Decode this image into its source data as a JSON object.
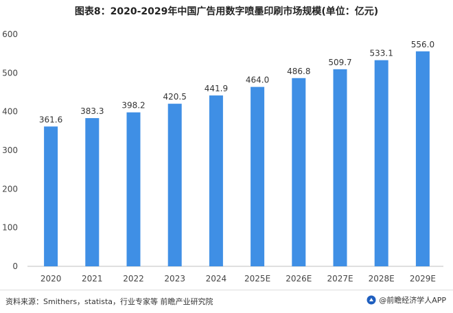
{
  "title": "图表8：2020-2029年中国广告用数字喷墨印刷市场规模(单位：亿元)",
  "chart_data": {
    "type": "bar",
    "title": "图表8：2020-2029年中国广告用数字喷墨印刷市场规模(单位：亿元)",
    "categories": [
      "2020",
      "2021",
      "2022",
      "2023",
      "2024",
      "2025E",
      "2026E",
      "2027E",
      "2028E",
      "2029E"
    ],
    "values": [
      361.6,
      383.3,
      398.2,
      420.5,
      441.9,
      464.0,
      486.8,
      509.7,
      533.1,
      556.0
    ],
    "value_labels": [
      "361.6",
      "383.3",
      "398.2",
      "420.5",
      "441.9",
      "464.0",
      "486.8",
      "509.7",
      "533.1",
      "556.0"
    ],
    "ylim": [
      0,
      600
    ],
    "yticks": [
      "0",
      "100",
      "200",
      "300",
      "400",
      "500",
      "600"
    ],
    "grid": false,
    "legend": "none",
    "bar_color": "#3f8fe5"
  },
  "footer": {
    "source": "资料来源：Smithers，statista，行业专家等 前瞻产业研究院",
    "brand": "@前瞻经济学人APP",
    "brand_icon": "qianzhan-logo-icon"
  }
}
